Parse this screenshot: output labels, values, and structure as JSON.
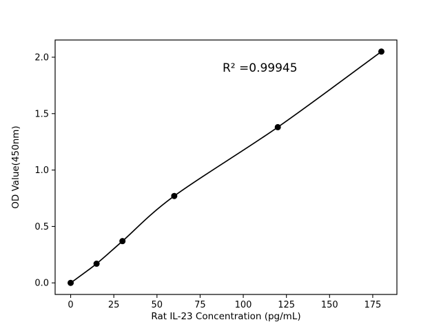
{
  "figure": {
    "background": "#ffffff"
  },
  "chart_data": {
    "type": "scatter",
    "title": "",
    "xlabel": "Rat IL-23 Concentration (pg/mL)",
    "ylabel": "OD Value(450nm)",
    "x": [
      0,
      15,
      30,
      60,
      120,
      180
    ],
    "y": [
      0.0,
      0.17,
      0.37,
      0.77,
      1.38,
      2.05
    ],
    "fit_curve": true,
    "xlim": [
      -9,
      189
    ],
    "ylim": [
      -0.1025,
      2.1525
    ],
    "xticks": [
      0,
      25,
      50,
      75,
      100,
      125,
      150,
      175
    ],
    "xtick_labels": [
      "0",
      "25",
      "50",
      "75",
      "100",
      "125",
      "150",
      "175"
    ],
    "yticks": [
      0.0,
      0.5,
      1.0,
      1.5,
      2.0
    ],
    "ytick_labels": [
      "0.0",
      "0.5",
      "1.0",
      "1.5",
      "2.0"
    ],
    "annotation": {
      "text": "R² =0.99945",
      "x": 88,
      "y": 1.87
    },
    "grid": false,
    "legend": null,
    "marker_color": "#000000",
    "line_color": "#000000",
    "spine_color": "#000000"
  }
}
